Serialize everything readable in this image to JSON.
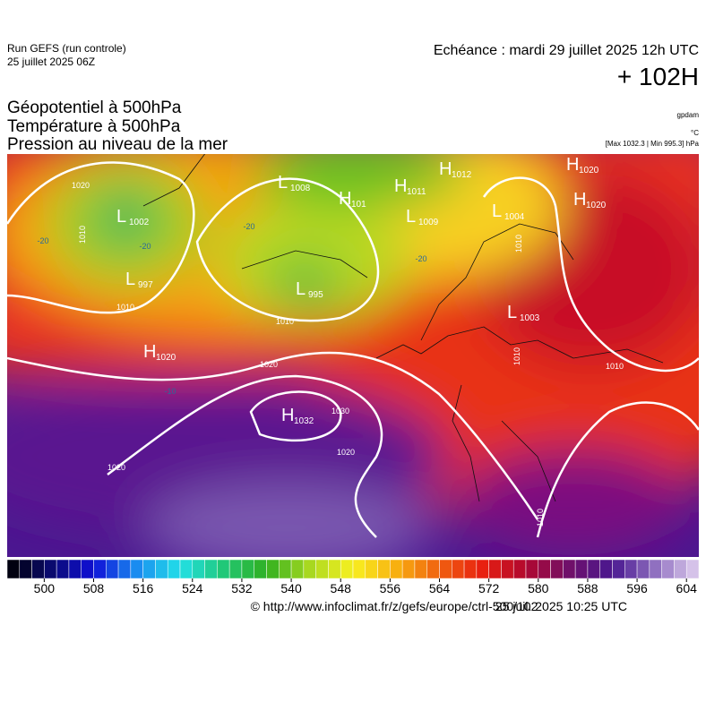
{
  "header": {
    "run": "Run GEFS (run controle)",
    "run_date": "25 juillet 2025 06Z",
    "valid": "Echéance : mardi 29 juillet 2025 12h UTC",
    "lead": "+ 102H"
  },
  "titles": [
    "Géopotentiel à 500hPa",
    "Température à 500hPa",
    "Pression au niveau de la mer"
  ],
  "units": [
    "gpdam",
    "°C",
    "[Max 1032.3 | Min 995.3] hPa"
  ],
  "map": {
    "centers": [
      {
        "type": "L",
        "value": 1002
      },
      {
        "type": "L",
        "value": 997
      },
      {
        "type": "L",
        "value": 1008
      },
      {
        "type": "H",
        "value": 101
      },
      {
        "type": "H",
        "value": 1011
      },
      {
        "type": "H",
        "value": 1012
      },
      {
        "type": "L",
        "value": 1009
      },
      {
        "type": "L",
        "value": 1004
      },
      {
        "type": "H",
        "value": 1020
      },
      {
        "type": "H",
        "value": 1020
      },
      {
        "type": "L",
        "value": 995
      },
      {
        "type": "L",
        "value": 1003
      },
      {
        "type": "H",
        "value": 1020
      },
      {
        "type": "H",
        "value": 1032
      }
    ],
    "isobar_labels": [
      1020,
      1010,
      1010,
      1010,
      1020,
      1030,
      1020,
      1020,
      1010,
      1010,
      1010,
      1010
    ],
    "temp_labels": [
      -20,
      -20,
      -20,
      -20,
      -10
    ]
  },
  "colorbar": {
    "lim": [
      494,
      606
    ],
    "ticks": [
      500,
      508,
      516,
      524,
      532,
      540,
      548,
      556,
      564,
      572,
      580,
      588,
      596,
      604
    ],
    "colors": [
      "#000000",
      "#0a0a6e",
      "#1010d8",
      "#1a8cf0",
      "#22e0e8",
      "#20c878",
      "#30b020",
      "#a8d820",
      "#f8f020",
      "#f8b010",
      "#f06010",
      "#e82010",
      "#b00830",
      "#70106a",
      "#4a1890",
      "#9070c0",
      "#e0d0f0"
    ]
  },
  "footer": {
    "url": "© http://www.infoclimat.fr/z/gefs/europe/ctrl-500/102",
    "time": "25 juil. 2025 10:25 UTC"
  }
}
